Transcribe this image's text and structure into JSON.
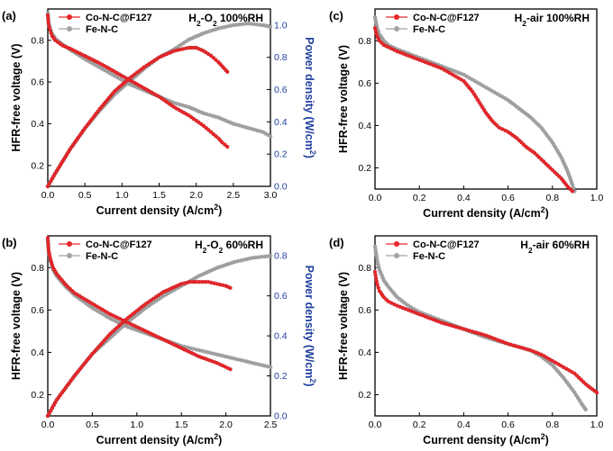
{
  "colors": {
    "series_a": "#e8262a",
    "series_b": "#a3a3a3",
    "right_axis": "#1f3f9e",
    "axis": "#000000"
  },
  "chart_data": [
    {
      "type": "line",
      "panel": "(a)",
      "panel_label": "(a)",
      "title": "H₂-O₂ 100%RH",
      "xlabel": "Current density (A/cm²)",
      "ylabel": "HFR-free voltage (V)",
      "y2label": "Power density (W/cm²)",
      "xlim": [
        0,
        3.0
      ],
      "ylim": [
        0.1,
        0.95
      ],
      "y2lim": [
        0,
        1.1
      ],
      "xticks": [
        "0.0",
        "0.5",
        "1.0",
        "1.5",
        "2.0",
        "2.5",
        "3.0"
      ],
      "yticks": [
        "0.2",
        "0.4",
        "0.6",
        "0.8"
      ],
      "y2ticks": [
        "0.0",
        "0.2",
        "0.4",
        "0.6",
        "0.8",
        "1.0"
      ],
      "legend_position": "top-left",
      "series": [
        {
          "name": "Co-N-C@F127",
          "color": "#e8262a",
          "axis": "left",
          "x": [
            0.0,
            0.01,
            0.03,
            0.06,
            0.1,
            0.2,
            0.3,
            0.5,
            0.7,
            0.9,
            1.1,
            1.3,
            1.5,
            1.7,
            1.9,
            2.1,
            2.2,
            2.3,
            2.35,
            2.42
          ],
          "y": [
            0.92,
            0.88,
            0.85,
            0.82,
            0.8,
            0.775,
            0.76,
            0.725,
            0.69,
            0.65,
            0.61,
            0.57,
            0.53,
            0.48,
            0.44,
            0.39,
            0.36,
            0.33,
            0.31,
            0.29
          ]
        },
        {
          "name": "Fe-N-C",
          "color": "#a3a3a3",
          "axis": "left",
          "x": [
            0.0,
            0.01,
            0.03,
            0.06,
            0.1,
            0.2,
            0.3,
            0.5,
            0.7,
            0.9,
            1.1,
            1.3,
            1.5,
            1.7,
            1.9,
            2.1,
            2.3,
            2.5,
            2.7,
            2.9,
            3.0
          ],
          "y": [
            0.93,
            0.89,
            0.86,
            0.83,
            0.81,
            0.78,
            0.755,
            0.71,
            0.67,
            0.63,
            0.59,
            0.56,
            0.53,
            0.5,
            0.48,
            0.45,
            0.43,
            0.4,
            0.38,
            0.36,
            0.34
          ]
        },
        {
          "name": "Co-N-C@F127 power density",
          "color": "#e8262a",
          "axis": "right",
          "x": [
            0.0,
            0.1,
            0.3,
            0.5,
            0.7,
            0.9,
            1.1,
            1.3,
            1.5,
            1.7,
            1.9,
            2.0,
            2.1,
            2.2,
            2.3,
            2.4,
            2.42
          ],
          "y": [
            0.0,
            0.08,
            0.23,
            0.36,
            0.48,
            0.59,
            0.67,
            0.74,
            0.8,
            0.84,
            0.86,
            0.86,
            0.84,
            0.81,
            0.77,
            0.72,
            0.71
          ]
        },
        {
          "name": "Fe-N-C power density",
          "color": "#a3a3a3",
          "axis": "right",
          "x": [
            0.0,
            0.1,
            0.3,
            0.5,
            0.7,
            0.9,
            1.1,
            1.3,
            1.5,
            1.7,
            1.9,
            2.1,
            2.3,
            2.5,
            2.7,
            2.9,
            3.0
          ],
          "y": [
            0.0,
            0.08,
            0.23,
            0.36,
            0.47,
            0.57,
            0.65,
            0.73,
            0.8,
            0.85,
            0.91,
            0.95,
            0.98,
            1.0,
            1.01,
            1.0,
            0.99
          ]
        }
      ]
    },
    {
      "type": "line",
      "panel": "(b)",
      "panel_label": "(b)",
      "title": "H₂-O₂ 60%RH",
      "xlabel": "Current density (A/cm²)",
      "ylabel": "HFR-free voltage (V)",
      "y2label": "Power density (W/cm²)",
      "xlim": [
        0,
        2.5
      ],
      "ylim": [
        0.1,
        0.95
      ],
      "y2lim": [
        0,
        0.9
      ],
      "xticks": [
        "0.0",
        "0.5",
        "1.0",
        "1.5",
        "2.0",
        "2.5"
      ],
      "yticks": [
        "0.2",
        "0.4",
        "0.6",
        "0.8"
      ],
      "y2ticks": [
        "0.0",
        "0.2",
        "0.4",
        "0.6",
        "0.8"
      ],
      "legend_position": "top-left",
      "series": [
        {
          "name": "Co-N-C@F127",
          "color": "#e8262a",
          "axis": "left",
          "x": [
            0.0,
            0.01,
            0.03,
            0.06,
            0.1,
            0.2,
            0.3,
            0.5,
            0.7,
            0.9,
            1.1,
            1.3,
            1.5,
            1.7,
            1.9,
            2.05
          ],
          "y": [
            0.94,
            0.88,
            0.84,
            0.8,
            0.77,
            0.72,
            0.68,
            0.63,
            0.58,
            0.54,
            0.5,
            0.46,
            0.42,
            0.38,
            0.35,
            0.32
          ]
        },
        {
          "name": "Fe-N-C",
          "color": "#a3a3a3",
          "axis": "left",
          "x": [
            0.0,
            0.01,
            0.03,
            0.06,
            0.1,
            0.2,
            0.3,
            0.5,
            0.7,
            0.9,
            1.1,
            1.3,
            1.5,
            1.7,
            1.9,
            2.1,
            2.3,
            2.5
          ],
          "y": [
            0.93,
            0.87,
            0.83,
            0.79,
            0.76,
            0.71,
            0.67,
            0.61,
            0.56,
            0.52,
            0.49,
            0.46,
            0.43,
            0.41,
            0.39,
            0.37,
            0.35,
            0.33
          ]
        },
        {
          "name": "Co-N-C@F127 power density",
          "color": "#e8262a",
          "axis": "right",
          "x": [
            0.0,
            0.1,
            0.3,
            0.5,
            0.7,
            0.9,
            1.1,
            1.3,
            1.5,
            1.6,
            1.7,
            1.8,
            1.9,
            2.0,
            2.05
          ],
          "y": [
            0.0,
            0.08,
            0.2,
            0.31,
            0.41,
            0.49,
            0.56,
            0.62,
            0.66,
            0.67,
            0.67,
            0.67,
            0.66,
            0.65,
            0.64
          ]
        },
        {
          "name": "Fe-N-C power density",
          "color": "#a3a3a3",
          "axis": "right",
          "x": [
            0.0,
            0.1,
            0.3,
            0.5,
            0.7,
            0.9,
            1.1,
            1.3,
            1.5,
            1.7,
            1.9,
            2.1,
            2.3,
            2.5
          ],
          "y": [
            0.0,
            0.08,
            0.2,
            0.31,
            0.39,
            0.47,
            0.54,
            0.6,
            0.65,
            0.7,
            0.74,
            0.77,
            0.79,
            0.8
          ]
        }
      ]
    },
    {
      "type": "line",
      "panel": "(c)",
      "panel_label": "(c)",
      "title": "H₂-air 100%RH",
      "xlabel": "Current density (A/cm²)",
      "ylabel": "HFR-free voltage (V)",
      "xlim": [
        0,
        1.0
      ],
      "ylim": [
        0.1,
        0.95
      ],
      "xticks": [
        "0.0",
        "0.2",
        "0.4",
        "0.6",
        "0.8",
        "1.0"
      ],
      "yticks": [
        "0.2",
        "0.4",
        "0.6",
        "0.8"
      ],
      "legend_position": "top-left",
      "series": [
        {
          "name": "Co-N-C@F127",
          "color": "#e8262a",
          "axis": "left",
          "x": [
            0.0,
            0.01,
            0.02,
            0.04,
            0.06,
            0.1,
            0.15,
            0.2,
            0.25,
            0.3,
            0.35,
            0.4,
            0.44,
            0.47,
            0.5,
            0.53,
            0.56,
            0.6,
            0.64,
            0.68,
            0.72,
            0.76,
            0.8,
            0.84,
            0.87,
            0.89
          ],
          "y": [
            0.86,
            0.82,
            0.8,
            0.78,
            0.77,
            0.75,
            0.73,
            0.71,
            0.69,
            0.67,
            0.64,
            0.61,
            0.56,
            0.51,
            0.46,
            0.42,
            0.39,
            0.37,
            0.34,
            0.3,
            0.27,
            0.23,
            0.19,
            0.15,
            0.11,
            0.09
          ]
        },
        {
          "name": "Fe-N-C",
          "color": "#a3a3a3",
          "axis": "left",
          "x": [
            0.0,
            0.01,
            0.02,
            0.04,
            0.06,
            0.1,
            0.15,
            0.2,
            0.25,
            0.3,
            0.35,
            0.4,
            0.45,
            0.5,
            0.55,
            0.6,
            0.65,
            0.7,
            0.75,
            0.8,
            0.84,
            0.87,
            0.89,
            0.9
          ],
          "y": [
            0.91,
            0.86,
            0.83,
            0.8,
            0.78,
            0.76,
            0.74,
            0.72,
            0.7,
            0.68,
            0.66,
            0.64,
            0.61,
            0.58,
            0.55,
            0.52,
            0.48,
            0.44,
            0.39,
            0.32,
            0.25,
            0.18,
            0.12,
            0.09
          ]
        }
      ]
    },
    {
      "type": "line",
      "panel": "(d)",
      "panel_label": "(d)",
      "title": "H₂-air 60%RH",
      "xlabel": "Current density (A/cm²)",
      "ylabel": "HFR-free voltage (V)",
      "xlim": [
        0,
        1.0
      ],
      "ylim": [
        0.1,
        0.95
      ],
      "xticks": [
        "0.0",
        "0.2",
        "0.4",
        "0.6",
        "0.8",
        "1.0"
      ],
      "yticks": [
        "0.2",
        "0.4",
        "0.6",
        "0.8"
      ],
      "legend_position": "top-left",
      "series": [
        {
          "name": "Co-N-C@F127",
          "color": "#e8262a",
          "axis": "left",
          "x": [
            0.0,
            0.01,
            0.02,
            0.04,
            0.06,
            0.1,
            0.15,
            0.2,
            0.25,
            0.3,
            0.4,
            0.5,
            0.6,
            0.7,
            0.75,
            0.8,
            0.85,
            0.9,
            0.95,
            1.0
          ],
          "y": [
            0.78,
            0.72,
            0.69,
            0.66,
            0.64,
            0.62,
            0.6,
            0.58,
            0.56,
            0.54,
            0.51,
            0.48,
            0.44,
            0.41,
            0.39,
            0.36,
            0.33,
            0.3,
            0.25,
            0.21
          ]
        },
        {
          "name": "Fe-N-C",
          "color": "#a3a3a3",
          "axis": "left",
          "x": [
            0.0,
            0.01,
            0.02,
            0.04,
            0.06,
            0.1,
            0.15,
            0.2,
            0.25,
            0.3,
            0.4,
            0.5,
            0.6,
            0.7,
            0.75,
            0.8,
            0.85,
            0.9,
            0.93,
            0.95
          ],
          "y": [
            0.9,
            0.83,
            0.79,
            0.74,
            0.71,
            0.66,
            0.62,
            0.59,
            0.57,
            0.55,
            0.51,
            0.47,
            0.44,
            0.41,
            0.38,
            0.34,
            0.28,
            0.21,
            0.16,
            0.13
          ]
        }
      ]
    }
  ]
}
